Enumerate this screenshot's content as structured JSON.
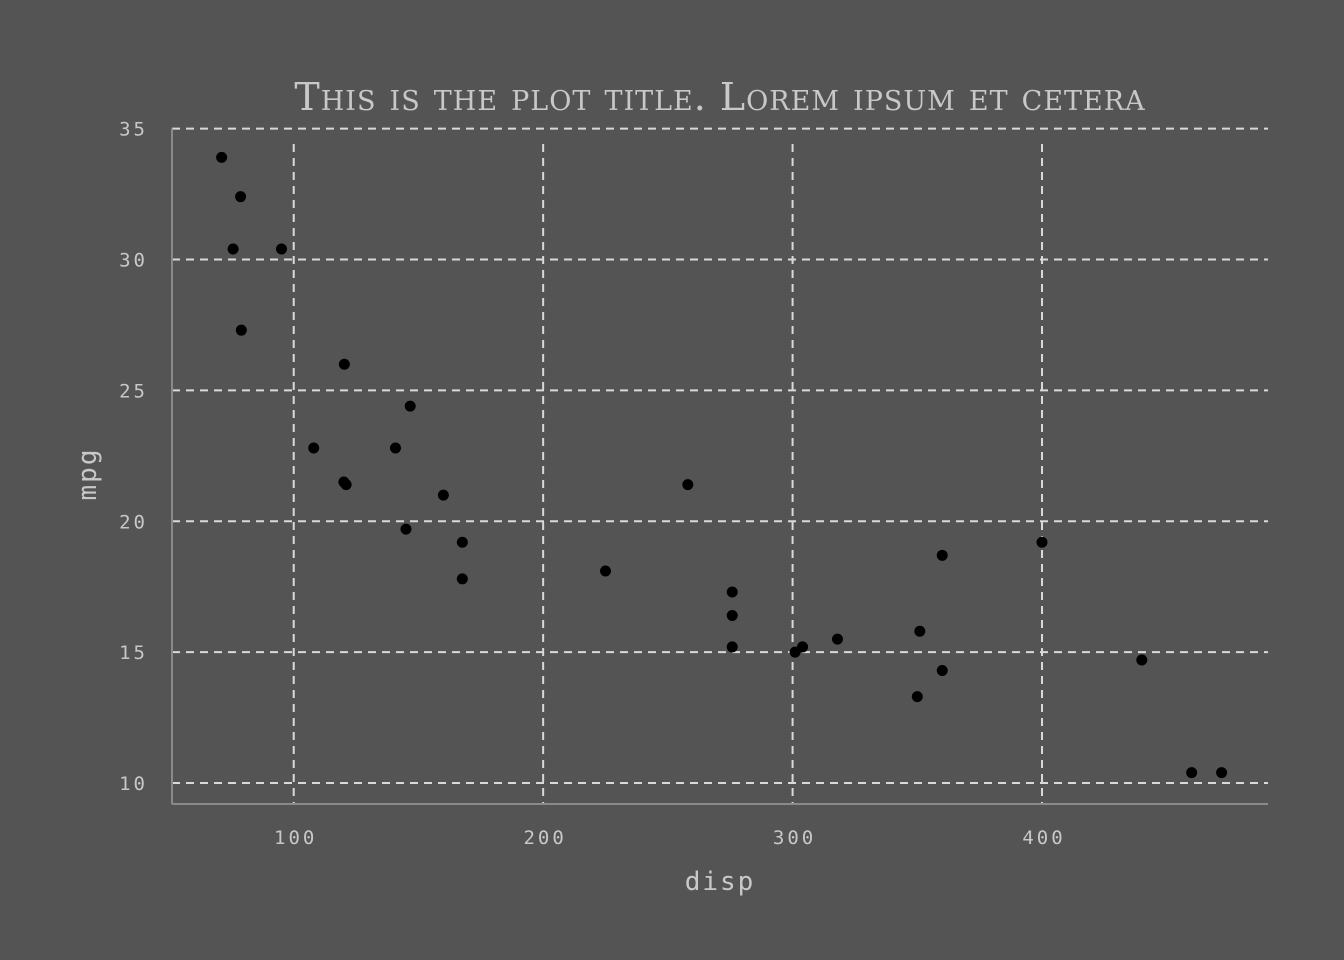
{
  "chart_data": {
    "type": "scatter",
    "title": "This is the plot title. Lorem ipsum et cetera",
    "xlabel": "disp",
    "ylabel": "mpg",
    "xlim": [
      51.2,
      490.6
    ],
    "ylim": [
      9.2,
      35.1
    ],
    "x_ticks": [
      100,
      200,
      300,
      400
    ],
    "y_ticks": [
      10,
      15,
      20,
      25,
      30,
      35
    ],
    "grid": true,
    "point_color": "#000000",
    "background_color": "#545454",
    "text_color": "#c8c8c8",
    "grid_color": "#d9d9d9",
    "points": [
      {
        "x": 71.1,
        "y": 33.9
      },
      {
        "x": 78.7,
        "y": 32.4
      },
      {
        "x": 75.7,
        "y": 30.4
      },
      {
        "x": 95.1,
        "y": 30.4
      },
      {
        "x": 79.0,
        "y": 27.3
      },
      {
        "x": 120.3,
        "y": 26.0
      },
      {
        "x": 146.7,
        "y": 24.4
      },
      {
        "x": 108.0,
        "y": 22.8
      },
      {
        "x": 140.8,
        "y": 22.8
      },
      {
        "x": 120.1,
        "y": 21.5
      },
      {
        "x": 121.0,
        "y": 21.4
      },
      {
        "x": 258.0,
        "y": 21.4
      },
      {
        "x": 160.0,
        "y": 21.0
      },
      {
        "x": 145.0,
        "y": 19.7
      },
      {
        "x": 167.6,
        "y": 19.2
      },
      {
        "x": 400.0,
        "y": 19.2
      },
      {
        "x": 360.0,
        "y": 18.7
      },
      {
        "x": 225.0,
        "y": 18.1
      },
      {
        "x": 167.6,
        "y": 17.8
      },
      {
        "x": 275.8,
        "y": 17.3
      },
      {
        "x": 275.8,
        "y": 16.4
      },
      {
        "x": 318.0,
        "y": 15.5
      },
      {
        "x": 351.0,
        "y": 15.8
      },
      {
        "x": 275.8,
        "y": 15.2
      },
      {
        "x": 304.0,
        "y": 15.2
      },
      {
        "x": 301.0,
        "y": 15.0
      },
      {
        "x": 440.0,
        "y": 14.7
      },
      {
        "x": 360.0,
        "y": 14.3
      },
      {
        "x": 350.0,
        "y": 13.3
      },
      {
        "x": 460.0,
        "y": 10.4
      },
      {
        "x": 472.0,
        "y": 10.4
      }
    ]
  }
}
